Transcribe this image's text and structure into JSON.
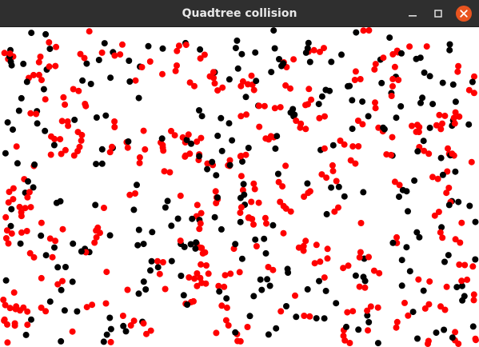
{
  "window": {
    "title": "Quadtree collision"
  },
  "icons": {
    "minimize": "minimize-icon",
    "maximize": "maximize-icon",
    "close": "close-icon"
  },
  "colors": {
    "titlebar": "#2f2f2f",
    "title_text": "#e8e8e8",
    "close_button": "#e9541f",
    "background": "#ffffff",
    "colliding_particle": "#ff0000",
    "free_particle": "#000000"
  },
  "simulation": {
    "particle_count": 560,
    "colliding_fraction": 0.5
  }
}
